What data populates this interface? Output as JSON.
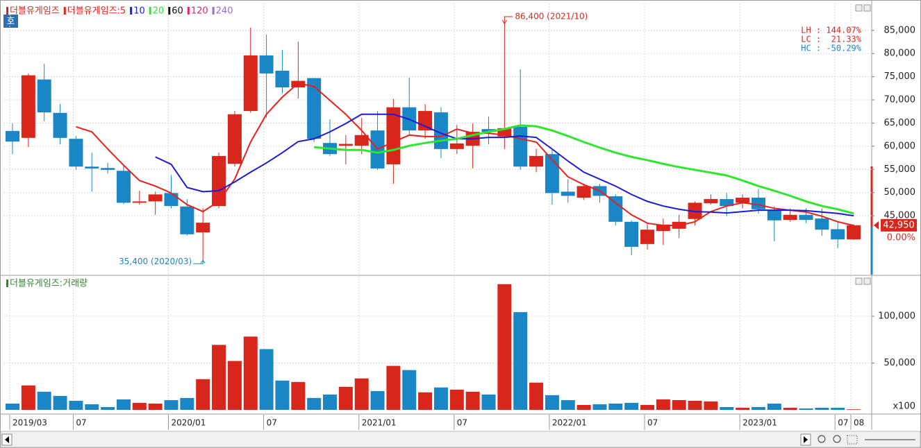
{
  "chart_data": [
    {
      "type": "candlestick",
      "name": "더블유게임즈",
      "badge": "호",
      "up_color": "#d9261c",
      "down_color": "#1a86c5",
      "categories": [
        "2019/03",
        null,
        null,
        null,
        "07",
        null,
        null,
        null,
        null,
        null,
        "2020/01",
        null,
        null,
        null,
        null,
        null,
        "07",
        null,
        null,
        null,
        null,
        null,
        "2021/01",
        null,
        null,
        null,
        null,
        null,
        "07",
        null,
        null,
        null,
        null,
        null,
        "2022/01",
        null,
        null,
        null,
        null,
        null,
        "07",
        null,
        null,
        null,
        null,
        null,
        "2023/01",
        null,
        null,
        null,
        null,
        null,
        "07",
        "08"
      ],
      "open": [
        63300,
        61800,
        74400,
        67200,
        61600,
        55600,
        55300,
        54700,
        47800,
        48100,
        49900,
        47000,
        41400,
        47100,
        56200,
        67600,
        79600,
        76300,
        72700,
        74700,
        60700,
        60100,
        60100,
        63400,
        56100,
        68400,
        63400,
        67300,
        59400,
        60100,
        63700,
        62100,
        64200,
        55600,
        58300,
        50200,
        48900,
        51400,
        49200,
        43700,
        38900,
        41700,
        42200,
        44300,
        47700,
        48600,
        47800,
        48900,
        46200,
        44100,
        45200,
        44400,
        42100,
        39900
      ],
      "high": [
        64900,
        75700,
        77800,
        69100,
        62200,
        58600,
        56400,
        56100,
        50400,
        50200,
        53800,
        48600,
        46600,
        58600,
        67600,
        85600,
        84100,
        80800,
        82600,
        74700,
        65800,
        62400,
        66100,
        67600,
        70200,
        74800,
        69100,
        68400,
        64600,
        64900,
        66400,
        86400,
        76600,
        59500,
        59500,
        52900,
        51900,
        51900,
        49600,
        44000,
        43400,
        44400,
        45200,
        48100,
        49600,
        49900,
        49600,
        50800,
        47000,
        46600,
        46600,
        46600,
        43700,
        43200
      ],
      "low": [
        58300,
        59800,
        65400,
        60400,
        54900,
        50200,
        54100,
        47500,
        47400,
        45200,
        46600,
        40700,
        35400,
        46600,
        55600,
        67200,
        66100,
        71400,
        70300,
        60900,
        57900,
        56100,
        58300,
        54900,
        51900,
        62400,
        61600,
        57400,
        58300,
        55200,
        60400,
        59400,
        54900,
        54400,
        47400,
        47800,
        48400,
        47800,
        42900,
        36500,
        37700,
        38700,
        40200,
        42900,
        47400,
        44900,
        46600,
        45500,
        39500,
        43700,
        43400,
        40700,
        38000,
        39800
      ],
      "close": [
        61000,
        75300,
        67300,
        61800,
        55600,
        55200,
        54900,
        47800,
        48100,
        49600,
        47100,
        41000,
        43500,
        57900,
        66900,
        79600,
        75700,
        72700,
        74100,
        61600,
        58300,
        60500,
        62400,
        55200,
        68400,
        63400,
        67600,
        59400,
        60600,
        63100,
        63100,
        63900,
        55600,
        57900,
        49900,
        49300,
        51400,
        49300,
        43700,
        38300,
        42000,
        43100,
        43700,
        47800,
        48600,
        47100,
        48900,
        46400,
        44000,
        45200,
        44100,
        42000,
        39900,
        42950
      ],
      "series": [
        {
          "name": "더블유게임즈:5",
          "color": "#e8201b",
          "values": [
            null,
            null,
            null,
            null,
            64200,
            63100,
            59400,
            55900,
            52600,
            51400,
            49900,
            47400,
            45900,
            48100,
            52900,
            60900,
            66900,
            70600,
            73600,
            72900,
            69900,
            66900,
            63400,
            59400,
            60900,
            62400,
            62100,
            62100,
            63700,
            62800,
            62800,
            62400,
            61600,
            60900,
            57100,
            53400,
            51700,
            50400,
            47800,
            45200,
            43400,
            42900,
            42900,
            43700,
            45900,
            47100,
            47800,
            47400,
            46600,
            46200,
            45800,
            44900,
            43700,
            42900
          ]
        },
        {
          "name": "10",
          "color": "#1a1ad8",
          "values": [
            null,
            null,
            null,
            null,
            null,
            null,
            null,
            null,
            null,
            57700,
            56100,
            51100,
            50200,
            50400,
            52300,
            54400,
            56400,
            58600,
            61000,
            61600,
            63100,
            64900,
            66900,
            66900,
            66900,
            65800,
            64300,
            62800,
            61600,
            61600,
            61900,
            61900,
            62200,
            61900,
            59400,
            56800,
            54400,
            52900,
            51400,
            49600,
            48100,
            47100,
            46400,
            45900,
            45800,
            45600,
            45900,
            46200,
            46200,
            46200,
            46100,
            45800,
            45500,
            45000
          ]
        },
        {
          "name": "20",
          "color": "#2ee62e",
          "values": [
            null,
            null,
            null,
            null,
            null,
            null,
            null,
            null,
            null,
            null,
            null,
            null,
            null,
            null,
            null,
            null,
            null,
            null,
            null,
            59800,
            59500,
            59200,
            59200,
            58600,
            59200,
            60100,
            60700,
            61200,
            61600,
            62400,
            63100,
            63700,
            64500,
            64300,
            63400,
            62200,
            60900,
            59700,
            58600,
            57700,
            57000,
            56200,
            55500,
            54900,
            54300,
            53700,
            52600,
            51400,
            50400,
            49300,
            48100,
            47100,
            46400,
            45500
          ]
        },
        {
          "name": "60",
          "color": "#111111",
          "values": [
            null,
            null,
            null,
            null,
            null,
            null,
            null,
            null,
            null,
            null,
            null,
            null,
            null,
            null,
            null,
            null,
            null,
            null,
            null,
            null,
            null,
            null,
            null,
            null,
            null,
            null,
            null,
            null,
            null,
            null,
            null,
            null,
            null,
            null,
            null,
            null,
            null,
            null,
            null,
            null,
            null,
            null,
            null,
            null,
            null,
            null,
            null,
            null,
            null,
            null,
            null,
            null,
            null,
            null
          ]
        },
        {
          "name": "120",
          "color": "#e0207a",
          "values": [
            null,
            null,
            null,
            null,
            null,
            null,
            null,
            null,
            null,
            null,
            null,
            null,
            null,
            null,
            null,
            null,
            null,
            null,
            null,
            null,
            null,
            null,
            null,
            null,
            null,
            null,
            null,
            null,
            null,
            null,
            null,
            null,
            null,
            null,
            null,
            null,
            null,
            null,
            null,
            null,
            null,
            null,
            null,
            null,
            null,
            null,
            null,
            null,
            null,
            null,
            null,
            null,
            null,
            null
          ]
        },
        {
          "name": "240",
          "color": "#9a6ad8",
          "values": [
            null,
            null,
            null,
            null,
            null,
            null,
            null,
            null,
            null,
            null,
            null,
            null,
            null,
            null,
            null,
            null,
            null,
            null,
            null,
            null,
            null,
            null,
            null,
            null,
            null,
            null,
            null,
            null,
            null,
            null,
            null,
            null,
            null,
            null,
            null,
            null,
            null,
            null,
            null,
            null,
            null,
            null,
            null,
            null,
            null,
            null,
            null,
            null,
            null,
            null,
            null,
            null,
            null,
            null
          ]
        }
      ],
      "ylim": [
        32300,
        90800
      ],
      "yticks": [
        {
          "value": 45000,
          "label": "45,000"
        },
        {
          "value": 50000,
          "label": "50,000"
        },
        {
          "value": 55000,
          "label": "55,000"
        },
        {
          "value": 60000,
          "label": "60,000"
        },
        {
          "value": 65000,
          "label": "65,000"
        },
        {
          "value": 70000,
          "label": "70,000"
        },
        {
          "value": 75000,
          "label": "75,000"
        },
        {
          "value": 80000,
          "label": "80,000"
        },
        {
          "value": 85000,
          "label": "85,000"
        }
      ],
      "grid": true,
      "annotations": {
        "high": "86,400 (2021/10)",
        "low": "35,400 (2020/03)"
      },
      "stats": [
        {
          "text": "LH : 144.07%",
          "color": "#d9261c"
        },
        {
          "text": "LC :  21.33%",
          "color": "#d9261c"
        },
        {
          "text": "HC : -50.29%",
          "color": "#1a86c5"
        }
      ],
      "last_price": {
        "value": 42950,
        "label": "42,950"
      },
      "change_label": "0.00%"
    },
    {
      "type": "bar",
      "title": "더블유게임즈:거래량",
      "title_color": "#2a8a2a",
      "unit": "x100",
      "values": [
        6700,
        26100,
        19400,
        14900,
        9700,
        6000,
        3000,
        11200,
        7500,
        6700,
        10400,
        12700,
        32800,
        69400,
        52200,
        78300,
        64900,
        31300,
        29800,
        12700,
        16400,
        24600,
        33600,
        20100,
        47000,
        42500,
        18700,
        23900,
        21600,
        19400,
        16400,
        134300,
        104400,
        29100,
        15700,
        10400,
        5200,
        6000,
        6700,
        7500,
        5200,
        11200,
        10400,
        9700,
        9000,
        3000,
        2200,
        3000,
        6700,
        2200,
        1500,
        2200,
        2200,
        600
      ],
      "ylim": [
        0,
        143000
      ],
      "yticks": [
        {
          "value": 50000,
          "label": "50,000"
        },
        {
          "value": 100000,
          "label": "100,000"
        }
      ],
      "grid": true
    }
  ]
}
